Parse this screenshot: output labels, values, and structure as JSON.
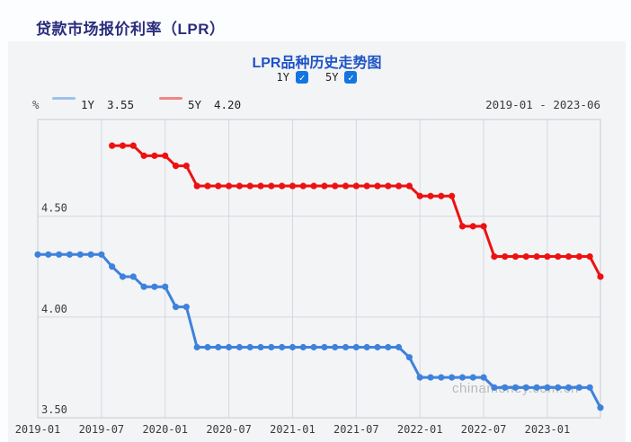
{
  "page": {
    "title": "贷款市场报价利率（LPR）",
    "background": "#fcfdff",
    "panel_background": "#f3f4f6"
  },
  "chart": {
    "title": "LPR品种历史走势图",
    "unit_label": "%",
    "controls": [
      {
        "label": "1Y",
        "checked": true
      },
      {
        "label": "5Y",
        "checked": true
      }
    ],
    "legend": [
      {
        "name": "1Y",
        "latest_value": "3.55",
        "swatch_color": "#9cc1ec"
      },
      {
        "name": "5Y",
        "latest_value": "4.20",
        "swatch_color": "#f28585"
      }
    ],
    "date_range": "2019-01 - 2023-06",
    "watermark": "chinamoney.com.cn",
    "check_icon": "✓",
    "checkbox_color": "#1375e0"
  },
  "chart_data": {
    "type": "line",
    "title": "LPR品种历史走势图",
    "xlabel": "",
    "ylabel": "%",
    "x_unit": "month",
    "x_start": "2019-01",
    "x_end": "2023-06",
    "x_tick_labels": [
      "2019-01",
      "2019-07",
      "2020-01",
      "2020-07",
      "2021-01",
      "2021-07",
      "2022-01",
      "2022-07",
      "2023-01"
    ],
    "x_tick_month_index": [
      0,
      6,
      12,
      18,
      24,
      30,
      36,
      42,
      48
    ],
    "y_ticks": [
      4.5,
      4.0,
      3.5
    ],
    "ylim": [
      3.5,
      4.98
    ],
    "grid": "on",
    "grid_color": "#d6d8e2",
    "border_color": "#c8cad0",
    "legend_position": "top-left",
    "series": [
      {
        "name": "1Y",
        "color": "#3f82dc",
        "values": [
          4.31,
          4.31,
          4.31,
          4.31,
          4.31,
          4.31,
          4.31,
          4.25,
          4.2,
          4.2,
          4.15,
          4.15,
          4.15,
          4.05,
          4.05,
          3.85,
          3.85,
          3.85,
          3.85,
          3.85,
          3.85,
          3.85,
          3.85,
          3.85,
          3.85,
          3.85,
          3.85,
          3.85,
          3.85,
          3.85,
          3.85,
          3.85,
          3.85,
          3.85,
          3.85,
          3.8,
          3.7,
          3.7,
          3.7,
          3.7,
          3.7,
          3.7,
          3.7,
          3.65,
          3.65,
          3.65,
          3.65,
          3.65,
          3.65,
          3.65,
          3.65,
          3.65,
          3.65,
          3.55
        ]
      },
      {
        "name": "5Y",
        "color": "#ed1111",
        "values": [
          null,
          null,
          null,
          null,
          null,
          null,
          null,
          4.85,
          4.85,
          4.85,
          4.8,
          4.8,
          4.8,
          4.75,
          4.75,
          4.65,
          4.65,
          4.65,
          4.65,
          4.65,
          4.65,
          4.65,
          4.65,
          4.65,
          4.65,
          4.65,
          4.65,
          4.65,
          4.65,
          4.65,
          4.65,
          4.65,
          4.65,
          4.65,
          4.65,
          4.65,
          4.6,
          4.6,
          4.6,
          4.6,
          4.45,
          4.45,
          4.45,
          4.3,
          4.3,
          4.3,
          4.3,
          4.3,
          4.3,
          4.3,
          4.3,
          4.3,
          4.3,
          4.2
        ]
      }
    ]
  }
}
